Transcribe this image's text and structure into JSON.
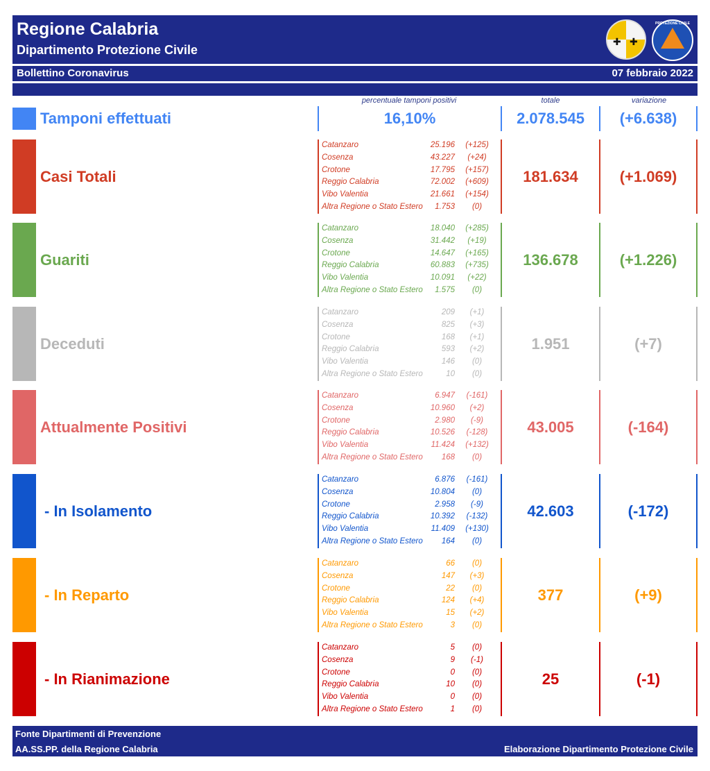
{
  "header": {
    "title": "Regione Calabria",
    "subtitle": "Dipartimento Protezione Civile",
    "bulletin": "Bollettino Coronavirus",
    "date": "07 febbraio 2022",
    "logo_text": "PROTEZIONE CIVILE"
  },
  "columns": {
    "percent": "percentuale tamponi positivi",
    "total": "totale",
    "variation": "variazione"
  },
  "tamponi": {
    "label": "Tamponi effettuati",
    "percent": "16,10%",
    "total": "2.078.545",
    "variation": "(+6.638)",
    "color": "#4285f4"
  },
  "sections": [
    {
      "label": "Casi Totali",
      "color": "#d03c24",
      "total": "181.634",
      "variation": "(+1.069)",
      "rows": [
        {
          "name": "Catanzaro",
          "value": "25.196",
          "delta": "(+125)"
        },
        {
          "name": "Cosenza",
          "value": "43.227",
          "delta": "(+24)"
        },
        {
          "name": "Crotone",
          "value": "17.795",
          "delta": "(+157)"
        },
        {
          "name": "Reggio Calabria",
          "value": "72.002",
          "delta": "(+609)"
        },
        {
          "name": "Vibo Valentia",
          "value": "21.661",
          "delta": "(+154)"
        },
        {
          "name": "Altra Regione o Stato Estero",
          "value": "1.753",
          "delta": "(0)"
        }
      ]
    },
    {
      "label": "Guariti",
      "color": "#6aa84f",
      "total": "136.678",
      "variation": "(+1.226)",
      "rows": [
        {
          "name": "Catanzaro",
          "value": "18.040",
          "delta": "(+285)"
        },
        {
          "name": "Cosenza",
          "value": "31.442",
          "delta": "(+19)"
        },
        {
          "name": "Crotone",
          "value": "14.647",
          "delta": "(+165)"
        },
        {
          "name": "Reggio Calabria",
          "value": "60.883",
          "delta": "(+735)"
        },
        {
          "name": "Vibo Valentia",
          "value": "10.091",
          "delta": "(+22)"
        },
        {
          "name": "Altra Regione o Stato Estero",
          "value": "1.575",
          "delta": "(0)"
        }
      ]
    },
    {
      "label": "Deceduti",
      "color": "#b7b7b7",
      "total": "1.951",
      "variation": "(+7)",
      "rows": [
        {
          "name": "Catanzaro",
          "value": "209",
          "delta": "(+1)"
        },
        {
          "name": "Cosenza",
          "value": "825",
          "delta": "(+3)"
        },
        {
          "name": "Crotone",
          "value": "168",
          "delta": "(+1)"
        },
        {
          "name": "Reggio Calabria",
          "value": "593",
          "delta": "(+2)"
        },
        {
          "name": "Vibo Valentia",
          "value": "146",
          "delta": "(0)"
        },
        {
          "name": "Altra Regione o Stato Estero",
          "value": "10",
          "delta": "(0)"
        }
      ]
    },
    {
      "label": "Attualmente Positivi",
      "color": "#e06666",
      "total": "43.005",
      "variation": "(-164)",
      "rows": [
        {
          "name": "Catanzaro",
          "value": "6.947",
          "delta": "(-161)"
        },
        {
          "name": "Cosenza",
          "value": "10.960",
          "delta": "(+2)"
        },
        {
          "name": "Crotone",
          "value": "2.980",
          "delta": "(-9)"
        },
        {
          "name": "Reggio Calabria",
          "value": "10.526",
          "delta": "(-128)"
        },
        {
          "name": "Vibo Valentia",
          "value": "11.424",
          "delta": "(+132)"
        },
        {
          "name": "Altra Regione o Stato Estero",
          "value": "168",
          "delta": "(0)"
        }
      ]
    },
    {
      "label": "- In Isolamento",
      "color": "#1155cc",
      "total": "42.603",
      "variation": "(-172)",
      "rows": [
        {
          "name": "Catanzaro",
          "value": "6.876",
          "delta": "(-161)"
        },
        {
          "name": "Cosenza",
          "value": "10.804",
          "delta": "(0)"
        },
        {
          "name": "Crotone",
          "value": "2.958",
          "delta": "(-9)"
        },
        {
          "name": "Reggio Calabria",
          "value": "10.392",
          "delta": "(-132)"
        },
        {
          "name": "Vibo Valentia",
          "value": "11.409",
          "delta": "(+130)"
        },
        {
          "name": "Altra Regione o Stato Estero",
          "value": "164",
          "delta": "(0)"
        }
      ]
    },
    {
      "label": "- In Reparto",
      "color": "#ff9900",
      "total": "377",
      "variation": "(+9)",
      "rows": [
        {
          "name": "Catanzaro",
          "value": "66",
          "delta": "(0)"
        },
        {
          "name": "Cosenza",
          "value": "147",
          "delta": "(+3)"
        },
        {
          "name": "Crotone",
          "value": "22",
          "delta": "(0)"
        },
        {
          "name": "Reggio Calabria",
          "value": "124",
          "delta": "(+4)"
        },
        {
          "name": "Vibo Valentia",
          "value": "15",
          "delta": "(+2)"
        },
        {
          "name": "Altra Regione o Stato Estero",
          "value": "3",
          "delta": "(0)"
        }
      ]
    },
    {
      "label": "- In Rianimazione",
      "color": "#cc0000",
      "total": "25",
      "variation": "(-1)",
      "rows": [
        {
          "name": "Catanzaro",
          "value": "5",
          "delta": "(0)"
        },
        {
          "name": "Cosenza",
          "value": "9",
          "delta": "(-1)"
        },
        {
          "name": "Crotone",
          "value": "0",
          "delta": "(0)"
        },
        {
          "name": "Reggio Calabria",
          "value": "10",
          "delta": "(0)"
        },
        {
          "name": "Vibo Valentia",
          "value": "0",
          "delta": "(0)"
        },
        {
          "name": "Altra Regione o Stato Estero",
          "value": "1",
          "delta": "(0)"
        }
      ]
    }
  ],
  "footer": {
    "source_line1": "Fonte Dipartimenti di Prevenzione",
    "source_line2": "AA.SS.PP.  della Regione Calabria",
    "credit": "Elaborazione Dipartimento Protezione Civile"
  }
}
